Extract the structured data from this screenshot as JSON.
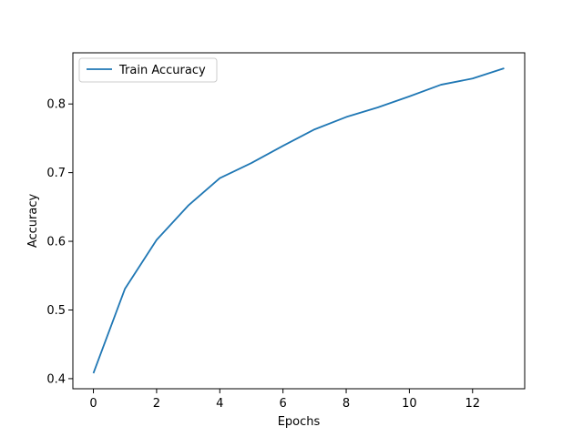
{
  "chart_data": {
    "type": "line",
    "title": "",
    "xlabel": "Epochs",
    "ylabel": "Accuracy",
    "xlim": [
      -0.65,
      13.65
    ],
    "ylim": [
      0.3853,
      0.8745
    ],
    "xticks": [
      0,
      2,
      4,
      6,
      8,
      10,
      12
    ],
    "yticks": [
      0.4,
      0.5,
      0.6,
      0.7,
      0.8
    ],
    "xtick_labels": [
      "0",
      "2",
      "4",
      "6",
      "8",
      "10",
      "12"
    ],
    "ytick_labels": [
      "0.4",
      "0.5",
      "0.6",
      "0.7",
      "0.8"
    ],
    "grid": false,
    "legend_placement": "top-left",
    "series": [
      {
        "name": "Train Accuracy",
        "color": "#1f77b4",
        "x": [
          0,
          1,
          2,
          3,
          4,
          5,
          6,
          7,
          8,
          9,
          10,
          11,
          12,
          13
        ],
        "values": [
          0.408,
          0.531,
          0.602,
          0.652,
          0.692,
          0.714,
          0.739,
          0.763,
          0.781,
          0.795,
          0.811,
          0.828,
          0.837,
          0.852
        ]
      }
    ]
  }
}
